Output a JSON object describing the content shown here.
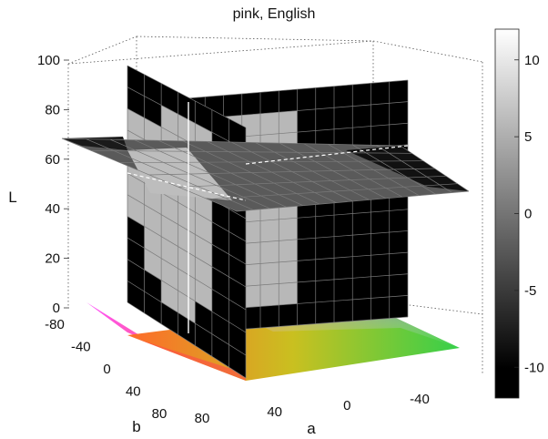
{
  "chart_data": {
    "type": "heatmap",
    "title": "pink, English",
    "axes": {
      "L": {
        "label": "L",
        "ticks": [
          "0",
          "20",
          "40",
          "60",
          "80",
          "100"
        ],
        "range": [
          0,
          100
        ]
      },
      "a": {
        "label": "a",
        "ticks": [
          "80",
          "40",
          "0",
          "-40"
        ],
        "range": [
          -80,
          80
        ],
        "reversed": true
      },
      "b": {
        "label": "b",
        "ticks": [
          "-80",
          "-40",
          "0",
          "40",
          "80"
        ],
        "range": [
          -80,
          80
        ]
      }
    },
    "colorbar": {
      "ticks": [
        "10",
        "5",
        "0",
        "-5",
        "-10"
      ],
      "range": [
        -12,
        12
      ],
      "colormap": "gray"
    },
    "grid": true,
    "slices": [
      {
        "plane": "b",
        "at": 0,
        "rows_from_top": [
          "KKKKKKKKKKKK",
          "KKHHHHKKKKKK",
          "KHHHHHKKKKKK",
          "KHHHHHKKKKKK",
          "KHHHHHKKKKKK",
          "KHHHHHKKKKKK",
          "KKHHHHKKKKKK",
          "KKHHHHKKKKKK",
          "KKHHHHKKKKKK",
          "KKKHHHKKKKKK",
          "KKKKKKKKKKKK"
        ]
      },
      {
        "plane": "a",
        "at": 0,
        "rows_from_top": [
          "KKKKKKK",
          "KKHHHKK",
          "HHHHHKK",
          "HHHHHKK",
          "HHHHHKK",
          "HHHHHKK",
          "HHHHHKK",
          "KHHHHKK",
          "KHHHHKK",
          "KKHHKKK",
          "KKKKKKK"
        ]
      },
      {
        "plane": "L",
        "at": 60
      }
    ],
    "gamut_plane": {
      "plane": "L",
      "at": 0
    }
  }
}
